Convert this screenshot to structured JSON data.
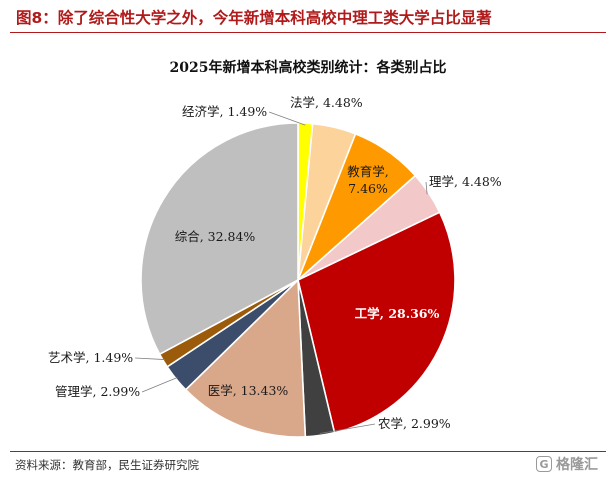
{
  "header": {
    "figure_title": "图8：除了综合性大学之外，今年新增本科高校中理工类大学占比显著"
  },
  "footer": {
    "source": "资料来源：教育部，民生证券研究院",
    "watermark_icon": "G",
    "watermark_text": "格隆汇"
  },
  "chart_data": {
    "type": "pie",
    "title": "2025年新增本科高校类别统计：各类别占比",
    "unit": "%",
    "slices": [
      {
        "name": "经济学",
        "value": 1.49,
        "label": "经济学, 1.49%",
        "color": "#ffff00"
      },
      {
        "name": "法学",
        "value": 4.48,
        "label": "法学, 4.48%",
        "color": "#fcd39a"
      },
      {
        "name": "教育学",
        "value": 7.46,
        "label_lines": [
          "教育学,",
          "7.46%"
        ],
        "color": "#ff9900"
      },
      {
        "name": "理学",
        "value": 4.48,
        "label": "理学, 4.48%",
        "color": "#f3c8c8"
      },
      {
        "name": "工学",
        "value": 28.36,
        "label": "工学, 28.36%",
        "color": "#c00000"
      },
      {
        "name": "农学",
        "value": 2.99,
        "label": "农学, 2.99%",
        "color": "#404040"
      },
      {
        "name": "医学",
        "value": 13.43,
        "label": "医学, 13.43%",
        "color": "#d9a88b"
      },
      {
        "name": "管理学",
        "value": 2.99,
        "label": "管理学, 2.99%",
        "color": "#3b4d6b"
      },
      {
        "name": "艺术学",
        "value": 1.49,
        "label": "艺术学, 1.49%",
        "color": "#9c5b0a"
      },
      {
        "name": "综合",
        "value": 32.84,
        "label": "综合, 32.84%",
        "color": "#bfbfbf"
      }
    ]
  }
}
